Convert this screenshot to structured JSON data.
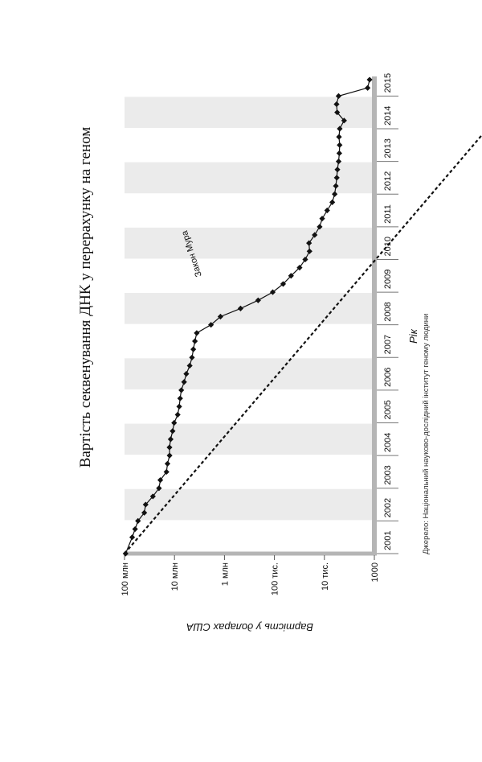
{
  "chart_data": {
    "type": "line",
    "title": "Вартість секвенування ДНК у перерахунку на геном",
    "xlabel": "Рік",
    "ylabel": "Вартість у доларах США",
    "source": "Джерело: Національний науково-дослідний інститут геному людини",
    "yscale": "log",
    "ylim": [
      1000,
      100000000
    ],
    "xlim": [
      2001,
      2015.6
    ],
    "y_ticks": [
      {
        "value": 100000000,
        "label": "100 млн"
      },
      {
        "value": 10000000,
        "label": "10 млн"
      },
      {
        "value": 1000000,
        "label": "1 млн"
      },
      {
        "value": 100000,
        "label": "100 тис."
      },
      {
        "value": 10000,
        "label": "10 тис."
      },
      {
        "value": 1000,
        "label": "1000"
      }
    ],
    "x_ticks": [
      "2001",
      "2002",
      "2003",
      "2004",
      "2005",
      "2006",
      "2007",
      "2008",
      "2009",
      "2010",
      "2011",
      "2012",
      "2013",
      "2014",
      "2015"
    ],
    "shaded_years": [
      "2002",
      "2004",
      "2006",
      "2008",
      "2010",
      "2012",
      "2014"
    ],
    "series": [
      {
        "name": "Вартість секвенування",
        "marker": "diamond",
        "x": [
          2001.0,
          2001.5,
          2001.75,
          2002.0,
          2002.25,
          2002.5,
          2002.75,
          2003.0,
          2003.25,
          2003.5,
          2003.75,
          2004.0,
          2004.25,
          2004.5,
          2004.75,
          2005.0,
          2005.25,
          2005.5,
          2005.75,
          2006.0,
          2006.25,
          2006.5,
          2006.75,
          2007.0,
          2007.25,
          2007.5,
          2007.75,
          2008.0,
          2008.25,
          2008.5,
          2008.75,
          2009.0,
          2009.25,
          2009.5,
          2009.75,
          2010.0,
          2010.25,
          2010.5,
          2010.75,
          2011.0,
          2011.25,
          2011.5,
          2011.75,
          2012.0,
          2012.25,
          2012.5,
          2012.75,
          2013.0,
          2013.25,
          2013.5,
          2013.75,
          2014.0,
          2014.25,
          2014.5,
          2014.75,
          2015.0,
          2015.25,
          2015.5
        ],
        "y": [
          95263072,
          70175437,
          61448422,
          53751684,
          40157554,
          37758156,
          27040657,
          20442576,
          19193532,
          14455303,
          13801124,
          12537185,
          12585659,
          11928118,
          10898156,
          10158563,
          8621671,
          8037981,
          7705198,
          7299299,
          6418755,
          5796775,
          4955806,
          4463474,
          4195871,
          3898471,
          3585442,
          1860225,
          1202445,
          476483,
          211891,
          108078,
          66871,
          46486,
          31349,
          24180,
          19838,
          20302,
          15632,
          12437,
          11068,
          8800,
          6947,
          6217,
          5896,
          5648,
          5484,
          5186,
          5024,
          4954,
          5096,
          4926,
          4032,
          5548,
          5700,
          5200,
          1363,
          1245
        ]
      },
      {
        "name": "Закон Мура",
        "style": "dashed",
        "x": [
          2001.0,
          2015.6
        ],
        "y": [
          100000000,
          0.7
        ]
      }
    ],
    "annotations": [
      {
        "text": "Закон Мура",
        "x": 2010.2,
        "y": 3000000
      }
    ]
  }
}
